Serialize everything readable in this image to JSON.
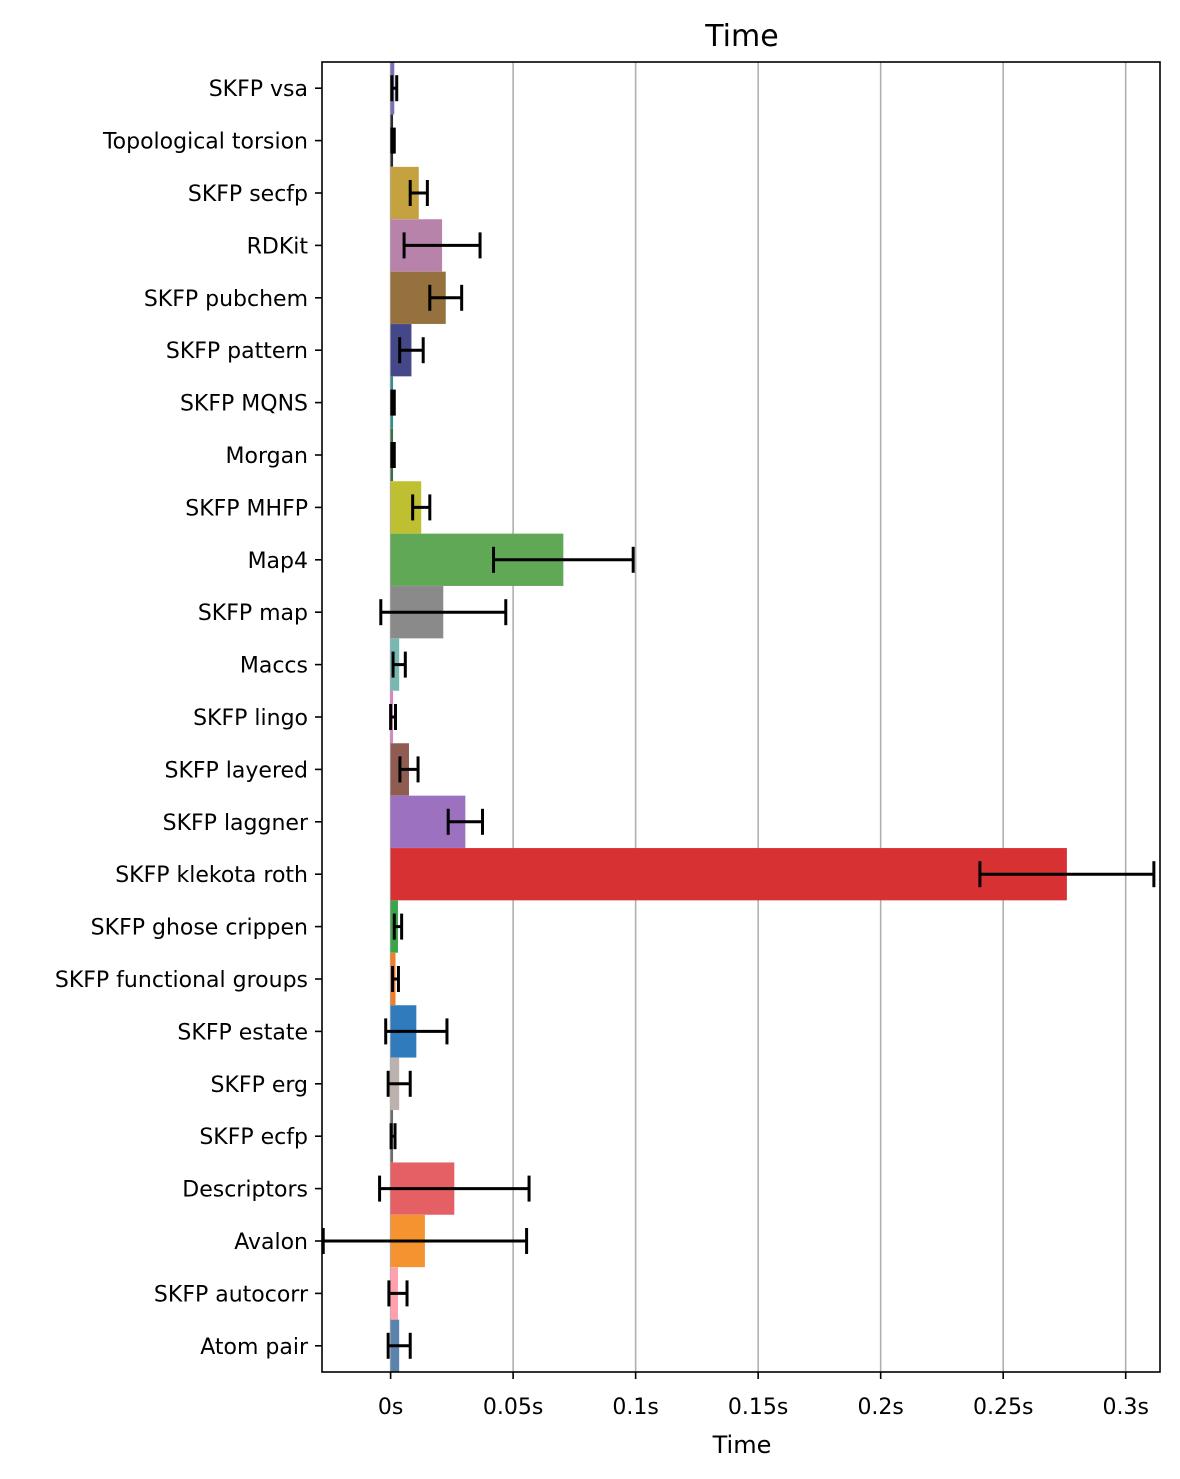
{
  "chart_data": {
    "type": "bar",
    "orientation": "horizontal",
    "title": "Time",
    "xlabel": "Time",
    "ylabel": "",
    "xlim": [
      -0.028,
      0.314
    ],
    "xticks": [
      0,
      0.05,
      0.1,
      0.15,
      0.2,
      0.25,
      0.3
    ],
    "xtick_labels": [
      "0s",
      "0.05s",
      "0.1s",
      "0.15s",
      "0.2s",
      "0.25s",
      "0.3s"
    ],
    "grid": "vertical",
    "legend": "none",
    "categories": [
      "SKFP vsa",
      "Topological torsion",
      "SKFP secfp",
      "RDKit",
      "SKFP pubchem",
      "SKFP pattern",
      "SKFP MQNS",
      "Morgan",
      "SKFP MHFP",
      "Map4",
      "SKFP map",
      "Maccs",
      "SKFP lingo",
      "SKFP layered",
      "SKFP laggner",
      "SKFP klekota roth",
      "SKFP ghose crippen",
      "SKFP functional groups",
      "SKFP estate",
      "SKFP erg",
      "SKFP ecfp",
      "Descriptors",
      "Avalon",
      "SKFP autocorr",
      "Atom pair"
    ],
    "values": [
      0.0015,
      0.001,
      0.0115,
      0.021,
      0.0225,
      0.0085,
      0.001,
      0.001,
      0.0125,
      0.0705,
      0.0215,
      0.0035,
      0.001,
      0.0075,
      0.0305,
      0.276,
      0.003,
      0.002,
      0.0105,
      0.0035,
      0.001,
      0.026,
      0.014,
      0.003,
      0.0035
    ],
    "errors": [
      0.001,
      0.0005,
      0.0035,
      0.0155,
      0.0065,
      0.0048,
      0.0005,
      0.0005,
      0.0035,
      0.0285,
      0.0255,
      0.0025,
      0.001,
      0.0037,
      0.007,
      0.0355,
      0.0015,
      0.0012,
      0.0125,
      0.0045,
      0.0008,
      0.0305,
      0.0415,
      0.0037,
      0.0045
    ],
    "colors": [
      "#7b6fb2",
      "#2a2a2a",
      "#c4a23f",
      "#b883ab",
      "#95723d",
      "#444889",
      "#2f8f8f",
      "#3a6d4a",
      "#bfbf32",
      "#61a856",
      "#8a8a8a",
      "#78b8b3",
      "#d982c4",
      "#8f5c52",
      "#9b71c0",
      "#d83133",
      "#3aa44a",
      "#f07f2a",
      "#2f7bbb",
      "#bcb1ac",
      "#6b6b6b",
      "#e56065",
      "#f59331",
      "#ffa0ac",
      "#5a84ad"
    ]
  }
}
